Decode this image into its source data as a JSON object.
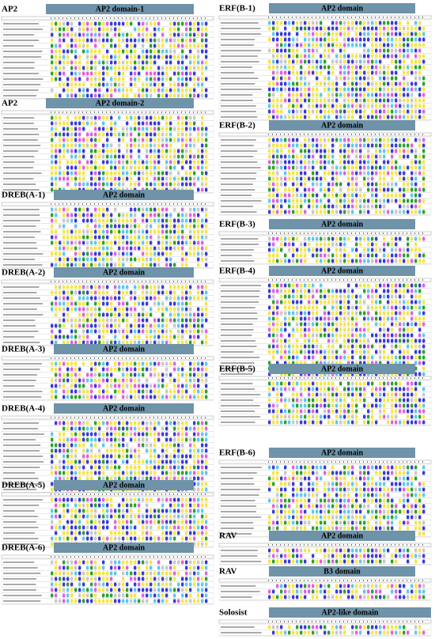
{
  "panels": [
    {
      "label": "AP2",
      "domain": "AP2 domain-1"
    },
    {
      "label": "AP2",
      "domain": "AP2 domain-2"
    },
    {
      "label": "DREB(A-1)",
      "domain": "AP2 domain"
    },
    {
      "label": "DREB(A-2)",
      "domain": "AP2 domain"
    },
    {
      "label": "DREB(A-3)",
      "domain": "AP2 domain"
    },
    {
      "label": "DREB(A-4)",
      "domain": "AP2 domain"
    },
    {
      "label": "DREB(A-5)",
      "domain": "AP2 domain"
    },
    {
      "label": "DREB(A-6)",
      "domain": "AP2 domain"
    },
    {
      "label": "ERF(B-1)",
      "domain": "AP2 domain"
    },
    {
      "label": "ERF(B-2)",
      "domain": "AP2 domain"
    },
    {
      "label": "ERF(B-3)",
      "domain": "AP2 domain"
    },
    {
      "label": "ERF(B-4)",
      "domain": "AP2 domain"
    },
    {
      "label": "ERF(B-5)",
      "domain": "AP2 domain"
    },
    {
      "label": "ERF(B-6)",
      "domain": "AP2 domain"
    },
    {
      "label": "RAV",
      "domain": "AP2 domain"
    },
    {
      "label": "RAV",
      "domain": "B3 domain"
    },
    {
      "label": "Solosist",
      "domain": "AP2-like domain"
    }
  ]
}
